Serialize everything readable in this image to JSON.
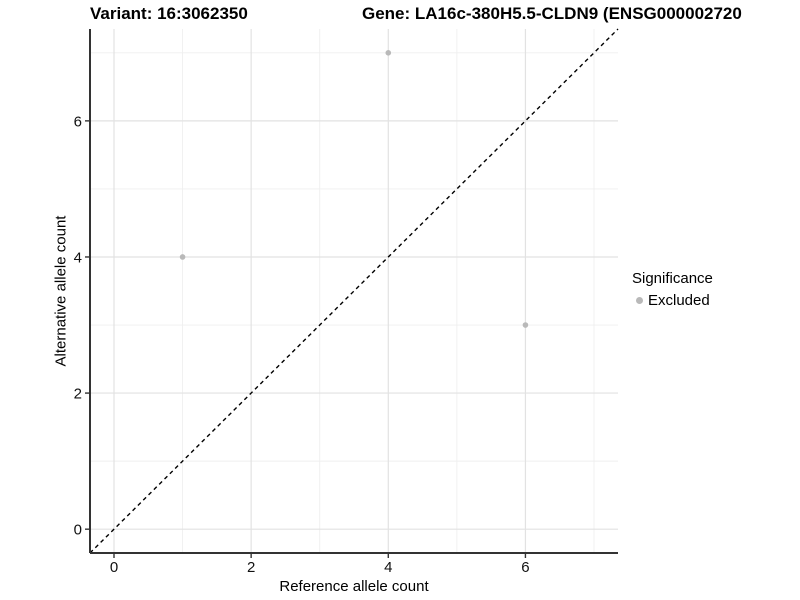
{
  "titles": {
    "variant": "Variant: 16:3062350",
    "gene": "Gene: LA16c-380H5.5-CLDN9 (ENSG000002720"
  },
  "chart_data": {
    "type": "scatter",
    "xlabel": "Reference allele count",
    "ylabel": "Alternative allele count",
    "xlim": [
      -0.35,
      7.35
    ],
    "ylim": [
      -0.35,
      7.35
    ],
    "x_major_ticks": [
      0,
      2,
      4,
      6
    ],
    "x_minor_gridlines": [
      1,
      3,
      5,
      7
    ],
    "y_major_ticks": [
      0,
      2,
      4,
      6
    ],
    "y_minor_gridlines": [
      1,
      3,
      5,
      7
    ],
    "grid": "on",
    "identity_line": {
      "style": "dashed",
      "equation": "y = x"
    },
    "series": [
      {
        "name": "Excluded",
        "color": "#b9b9b9",
        "points": [
          {
            "x": 1,
            "y": 4
          },
          {
            "x": 4,
            "y": 7
          },
          {
            "x": 6,
            "y": 3
          }
        ]
      }
    ],
    "legend": {
      "position": "right",
      "title": "Significance",
      "entries": [
        {
          "label": "Excluded",
          "color": "#b9b9b9",
          "marker": "circle"
        }
      ]
    }
  },
  "colors": {
    "background": "#ffffff",
    "axis_line": "#333333",
    "major_grid": "#e2e2e2",
    "minor_grid": "#efefef",
    "tick_text": "#111111",
    "identity_line": "#000000"
  }
}
